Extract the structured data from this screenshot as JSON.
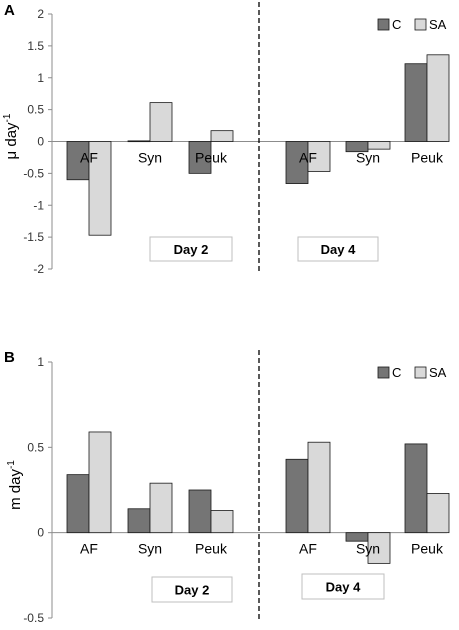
{
  "chart_data": [
    {
      "type": "bar",
      "panel_label": "A",
      "ylabel": "μ day",
      "ylabel_superscript": "-1",
      "ylim": [
        -2,
        2
      ],
      "yticks": [
        2,
        1.5,
        1,
        0.5,
        0,
        -0.5,
        -1,
        -1.5,
        -2
      ],
      "ytick_labels": [
        "2",
        "1.5",
        "1",
        "0.5",
        "0",
        "-0.5",
        "-1",
        "-1.5",
        "-2"
      ],
      "groups": [
        {
          "label": "Day 2",
          "categories": [
            "AF",
            "Syn",
            "Peuk"
          ],
          "series": [
            {
              "name": "C",
              "values": [
                -0.6,
                0.01,
                -0.5
              ]
            },
            {
              "name": "SA",
              "values": [
                -1.47,
                0.61,
                0.17
              ]
            }
          ]
        },
        {
          "label": "Day 4",
          "categories": [
            "AF",
            "Syn",
            "Peuk"
          ],
          "series": [
            {
              "name": "C",
              "values": [
                -0.66,
                -0.16,
                1.22
              ]
            },
            {
              "name": "SA",
              "values": [
                -0.47,
                -0.12,
                1.36
              ]
            }
          ]
        }
      ],
      "legend": [
        "C",
        "SA"
      ],
      "legend_position": "top-right",
      "grid": false
    },
    {
      "type": "bar",
      "panel_label": "B",
      "ylabel": "m  day",
      "ylabel_superscript": "-1",
      "ylim": [
        -0.5,
        1
      ],
      "yticks": [
        1,
        0.5,
        0,
        -0.5
      ],
      "ytick_labels": [
        "1",
        "0.5",
        "0",
        "-0.5"
      ],
      "groups": [
        {
          "label": "Day 2",
          "categories": [
            "AF",
            "Syn",
            "Peuk"
          ],
          "series": [
            {
              "name": "C",
              "values": [
                0.34,
                0.14,
                0.25
              ]
            },
            {
              "name": "SA",
              "values": [
                0.59,
                0.29,
                0.13
              ]
            }
          ]
        },
        {
          "label": "Day 4",
          "categories": [
            "AF",
            "Syn",
            "Peuk"
          ],
          "series": [
            {
              "name": "C",
              "values": [
                0.43,
                -0.05,
                0.52
              ]
            },
            {
              "name": "SA",
              "values": [
                0.53,
                -0.18,
                0.23
              ]
            }
          ]
        }
      ],
      "legend": [
        "C",
        "SA"
      ],
      "legend_position": "top-right",
      "grid": false
    }
  ],
  "colors": {
    "C": "#757575",
    "SA": "#d9d9d9",
    "edge": "#1a1a1a",
    "axis": "#8c8c8c"
  }
}
